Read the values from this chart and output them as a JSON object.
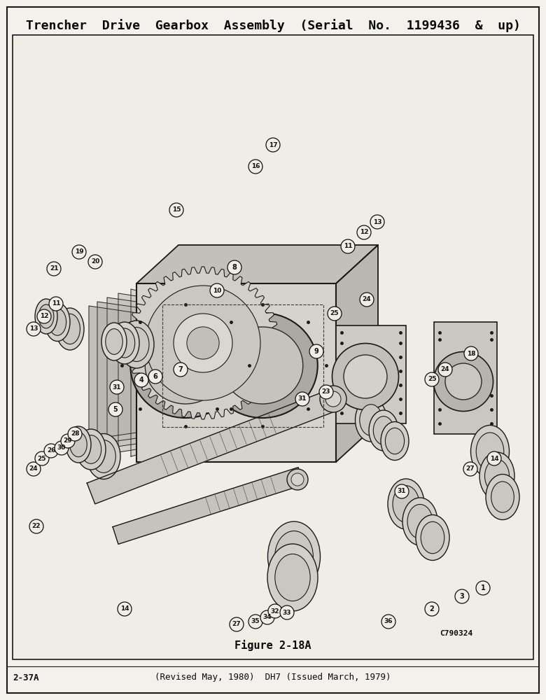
{
  "title": "Trencher  Drive  Gearbox  Assembly  (Serial  No.  1199436  &  up)",
  "figure_label": "Figure 2-18A",
  "page_ref": "2-37A",
  "revision_text": "(Revised May, 1980)  DH7 (Issued March, 1979)",
  "catalog_number": "C790324",
  "bg_color": "#f2f1ec",
  "border_color": "#1a1a1a",
  "inner_bg": "#eeede6",
  "title_fontsize": 13,
  "footer_fontsize": 9,
  "fig_label_fontsize": 11,
  "catalog_fontsize": 8,
  "label_fontsize": 7,
  "label_circle_r": 10,
  "part_labels": [
    [
      "1",
      690,
      160
    ],
    [
      "2",
      617,
      130
    ],
    [
      "3",
      660,
      148
    ],
    [
      "14",
      178,
      130
    ],
    [
      "27",
      338,
      108
    ],
    [
      "35",
      365,
      112
    ],
    [
      "34",
      382,
      118
    ],
    [
      "32",
      393,
      127
    ],
    [
      "33",
      410,
      125
    ],
    [
      "36",
      555,
      112
    ],
    [
      "22",
      52,
      248
    ],
    [
      "31",
      574,
      298
    ],
    [
      "27",
      672,
      330
    ],
    [
      "14",
      706,
      345
    ],
    [
      "24",
      48,
      330
    ],
    [
      "25",
      60,
      345
    ],
    [
      "26",
      73,
      356
    ],
    [
      "30",
      88,
      360
    ],
    [
      "29",
      97,
      370
    ],
    [
      "28",
      107,
      380
    ],
    [
      "5",
      165,
      415
    ],
    [
      "31",
      167,
      447
    ],
    [
      "4",
      202,
      457
    ],
    [
      "6",
      222,
      462
    ],
    [
      "7",
      258,
      472
    ],
    [
      "31",
      432,
      430
    ],
    [
      "23",
      466,
      440
    ],
    [
      "25",
      617,
      458
    ],
    [
      "24",
      636,
      472
    ],
    [
      "18",
      673,
      495
    ],
    [
      "13",
      48,
      530
    ],
    [
      "12",
      63,
      548
    ],
    [
      "11",
      80,
      566
    ],
    [
      "9",
      452,
      498
    ],
    [
      "25",
      478,
      552
    ],
    [
      "24",
      524,
      572
    ],
    [
      "10",
      310,
      585
    ],
    [
      "8",
      335,
      618
    ],
    [
      "19",
      113,
      640
    ],
    [
      "20",
      136,
      626
    ],
    [
      "21",
      77,
      616
    ],
    [
      "11",
      497,
      648
    ],
    [
      "12",
      520,
      668
    ],
    [
      "13",
      539,
      683
    ],
    [
      "15",
      252,
      700
    ],
    [
      "16",
      365,
      762
    ],
    [
      "17",
      390,
      793
    ]
  ],
  "callout_lines": [
    [
      690,
      160,
      672,
      152
    ],
    [
      617,
      130,
      633,
      138
    ],
    [
      660,
      148,
      650,
      145
    ],
    [
      178,
      130,
      195,
      145
    ],
    [
      338,
      108,
      345,
      125
    ],
    [
      52,
      248,
      80,
      248
    ],
    [
      574,
      298,
      558,
      302
    ],
    [
      672,
      330,
      655,
      330
    ],
    [
      48,
      330,
      78,
      335
    ],
    [
      60,
      345,
      87,
      348
    ],
    [
      165,
      415,
      188,
      420
    ],
    [
      167,
      447,
      192,
      450
    ],
    [
      452,
      430,
      435,
      438
    ],
    [
      617,
      458,
      595,
      460
    ],
    [
      48,
      530,
      75,
      535
    ],
    [
      452,
      498,
      438,
      505
    ],
    [
      310,
      585,
      325,
      572
    ],
    [
      113,
      640,
      140,
      632
    ],
    [
      77,
      616,
      100,
      620
    ],
    [
      252,
      700,
      270,
      688
    ],
    [
      365,
      762,
      365,
      748
    ],
    [
      390,
      793,
      390,
      778
    ]
  ]
}
